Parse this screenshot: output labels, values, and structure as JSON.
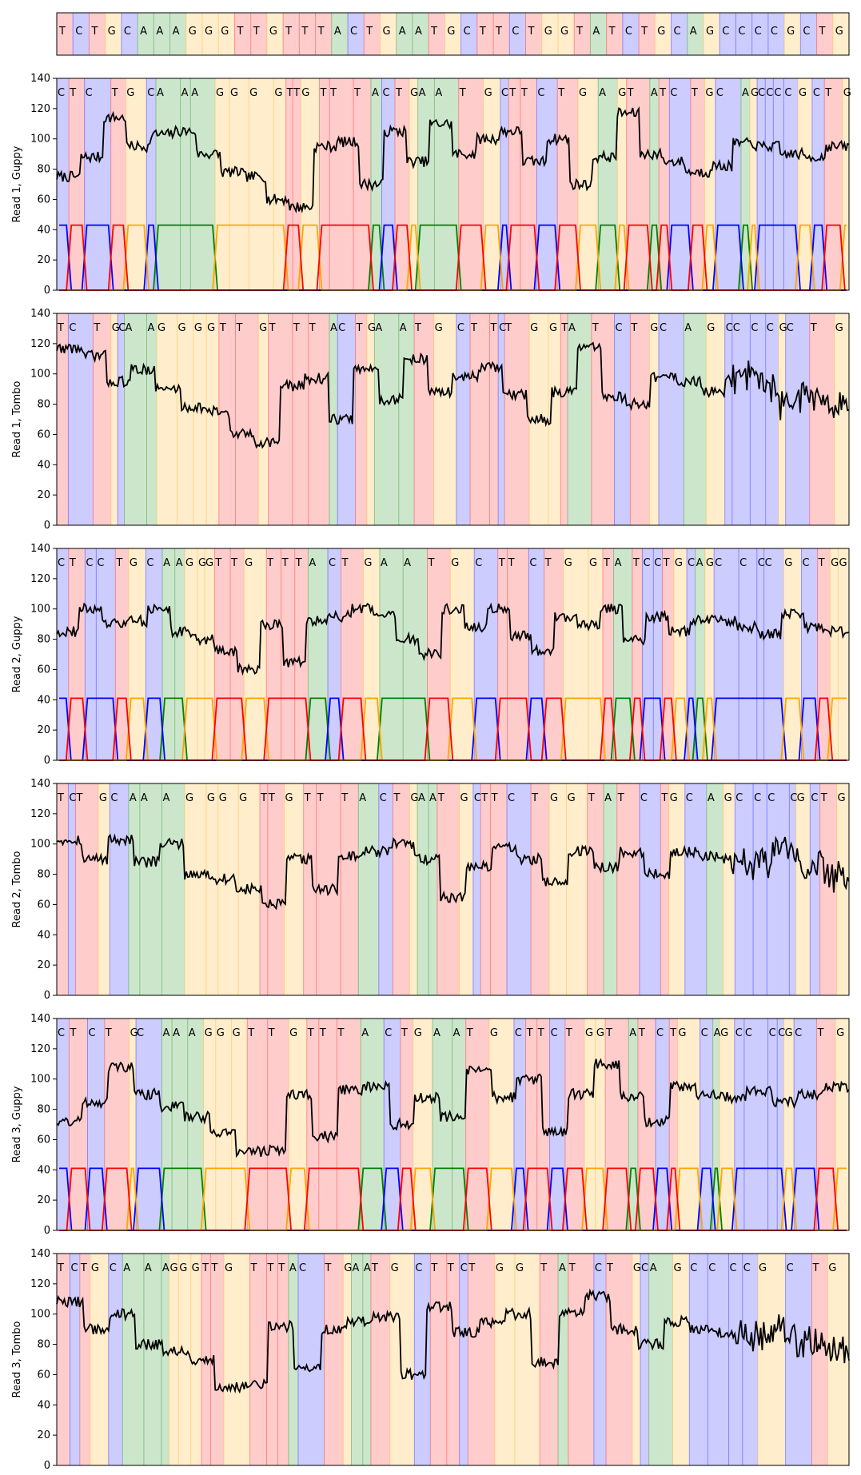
{
  "base_colors": {
    "A": "#008000",
    "C": "#0000ff",
    "G": "#ffa500",
    "T": "#ff0000"
  },
  "reference": {
    "sequence": "TCTGCAAAGGGTTGTTTACTGAATGCTTCTGGTATCTGCAGCCCCGCTG"
  },
  "chart_data": [
    {
      "type": "line",
      "ylabel": "Read 1, Guppy",
      "ylim": [
        0,
        140
      ],
      "yticks": [
        0,
        20,
        40,
        60,
        80,
        100,
        120,
        140
      ],
      "bases": "CTCTGCAAAGGGGTTGTTTACTGAATGCTTCTGAGTATCTGCAGCCCCGCTG",
      "signal_levels": [
        75,
        88,
        114,
        95,
        103,
        105,
        90,
        78,
        75,
        60,
        55,
        95,
        98,
        70,
        105,
        85,
        110,
        90,
        100,
        105,
        85,
        100,
        70,
        88,
        117,
        90,
        85,
        78,
        82,
        97,
        95,
        90,
        88,
        95
      ],
      "has_probability_traces": true,
      "probability_max": 43
    },
    {
      "type": "line",
      "ylabel": "Read 1, Tombo",
      "ylim": [
        0,
        140
      ],
      "yticks": [
        0,
        20,
        40,
        60,
        80,
        100,
        120,
        140
      ],
      "bases": "TCTGCAAGGGGTTGTTTACTGAATGCTTCTGGTATCTGCAGCCCCGCTG",
      "signal_levels": [
        117,
        112,
        95,
        103,
        90,
        78,
        75,
        60,
        55,
        92,
        97,
        70,
        103,
        83,
        110,
        88,
        98,
        104,
        86,
        70,
        88,
        117,
        85,
        80,
        98,
        95,
        88,
        97,
        92,
        80,
        85,
        80
      ],
      "has_probability_traces": false
    },
    {
      "type": "line",
      "ylabel": "Read 2, Guppy",
      "ylim": [
        0,
        140
      ],
      "yticks": [
        0,
        20,
        40,
        60,
        80,
        100,
        120,
        140
      ],
      "bases": "CTCCTGCAAGGGTTGTTTACTGAATGCTTCTGGTATCCTGCAGCCCCGCTGG",
      "signal_levels": [
        85,
        100,
        90,
        92,
        100,
        85,
        80,
        72,
        60,
        90,
        65,
        92,
        95,
        100,
        95,
        80,
        70,
        100,
        88,
        100,
        82,
        72,
        95,
        90,
        100,
        80,
        95,
        85,
        93,
        92,
        88,
        83,
        97,
        88,
        85
      ],
      "has_probability_traces": true,
      "probability_max": 41
    },
    {
      "type": "line",
      "ylabel": "Read 2, Tombo",
      "ylim": [
        0,
        140
      ],
      "yticks": [
        0,
        20,
        40,
        60,
        80,
        100,
        120,
        140
      ],
      "bases": "TCTGCAAAGGGGTTGTTTACTGAATGCTTCTGGTATCTGCAGCCCCGCTG",
      "signal_levels": [
        103,
        90,
        103,
        88,
        100,
        80,
        77,
        70,
        60,
        90,
        70,
        92,
        95,
        100,
        90,
        65,
        85,
        98,
        90,
        75,
        95,
        85,
        95,
        80,
        95,
        92,
        90,
        88,
        98,
        85,
        80
      ],
      "has_probability_traces": false
    },
    {
      "type": "line",
      "ylabel": "Read 3, Guppy",
      "ylim": [
        0,
        140
      ],
      "yticks": [
        0,
        20,
        40,
        60,
        80,
        100,
        120,
        140
      ],
      "bases": "CTCTGCAAAGGGTTGTTTACTGAATGCTTCTGGTATCTGCAGCCCCGCTG",
      "signal_levels": [
        72,
        85,
        108,
        90,
        82,
        75,
        65,
        52,
        53,
        90,
        62,
        93,
        95,
        70,
        88,
        75,
        105,
        88,
        100,
        65,
        90,
        110,
        88,
        72,
        95,
        90,
        88,
        92,
        85,
        90,
        95
      ],
      "has_probability_traces": true,
      "probability_max": 41
    },
    {
      "type": "line",
      "ylabel": "Read 3, Tombo",
      "ylim": [
        0,
        140
      ],
      "yticks": [
        0,
        20,
        40,
        60,
        80,
        100,
        120,
        140
      ],
      "bases": "TCTGCAAAGGGTTGTTTACTGAATGCTTCTGGTATCTGCAGCCCCGCTG",
      "signal_levels": [
        108,
        90,
        100,
        80,
        76,
        70,
        52,
        53,
        92,
        65,
        90,
        95,
        98,
        60,
        105,
        88,
        95,
        100,
        68,
        100,
        112,
        90,
        80,
        95,
        90,
        88,
        85,
        90,
        80,
        75
      ],
      "has_probability_traces": false
    }
  ]
}
